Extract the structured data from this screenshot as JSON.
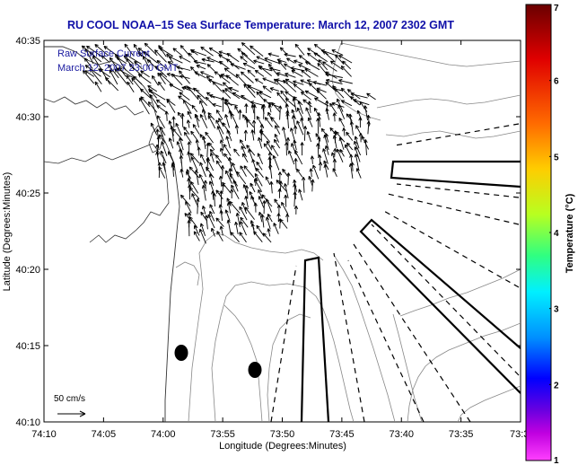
{
  "chart_data": {
    "type": "vector-field-map",
    "title": "RU COOL  NOAA–15  Sea Surface Temperature:  March 12, 2007 2302 GMT",
    "annotation_line1": "Raw Surface Current",
    "annotation_line2": "March 12, 2007 23:00 GMT",
    "xlabel": "Longitude (Degrees:Minutes)",
    "ylabel": "Latitude (Degrees:Minutes)",
    "x_ticks": [
      "74:10",
      "74:05",
      "74:00",
      "73:55",
      "73:50",
      "73:45",
      "73:40",
      "73:35",
      "73:3"
    ],
    "y_ticks": [
      "40:35",
      "40:30",
      "40:25",
      "40:20",
      "40:15",
      "40:10"
    ],
    "scale_label": "50 cm/s",
    "colorbar": {
      "label": "Temperature (°C)",
      "ticks": [
        "7",
        "6",
        "5",
        "4",
        "3",
        "2",
        "1"
      ],
      "range": [
        1,
        7
      ],
      "colors": [
        "#7a0000",
        "#ff0000",
        "#ff8000",
        "#ffe000",
        "#80ff40",
        "#00ffff",
        "#0080ff",
        "#0000ff",
        "#7000c0",
        "#ff00ff"
      ]
    },
    "xlim": [
      -74.1667,
      -73.5
    ],
    "ylim": [
      40.1667,
      40.5833
    ]
  }
}
